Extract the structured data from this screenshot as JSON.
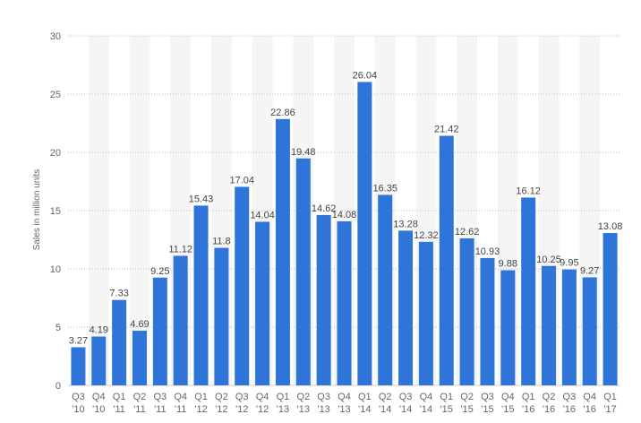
{
  "chart_data": {
    "type": "bar",
    "title": "",
    "xlabel": "",
    "ylabel": "Sales in million units",
    "ylim": [
      0,
      30
    ],
    "yticks": [
      0,
      5,
      10,
      15,
      20,
      25,
      30
    ],
    "grid": true,
    "bar_color": "#2f74d9",
    "band_color": "#f5f5f5",
    "categories": [
      [
        "Q3",
        "'10"
      ],
      [
        "Q4",
        "'10"
      ],
      [
        "Q1",
        "'11"
      ],
      [
        "Q2",
        "'11"
      ],
      [
        "Q3",
        "'11"
      ],
      [
        "Q4",
        "'11"
      ],
      [
        "Q1",
        "'12"
      ],
      [
        "Q2",
        "'12"
      ],
      [
        "Q3",
        "'12"
      ],
      [
        "Q4",
        "'12"
      ],
      [
        "Q1",
        "'13"
      ],
      [
        "Q2",
        "'13"
      ],
      [
        "Q3",
        "'13"
      ],
      [
        "Q4",
        "'13"
      ],
      [
        "Q1",
        "'14"
      ],
      [
        "Q2",
        "'14"
      ],
      [
        "Q3",
        "'14"
      ],
      [
        "Q4",
        "'14"
      ],
      [
        "Q1",
        "'15"
      ],
      [
        "Q2",
        "'15"
      ],
      [
        "Q3",
        "'15"
      ],
      [
        "Q4",
        "'15"
      ],
      [
        "Q1",
        "'16"
      ],
      [
        "Q2",
        "'16"
      ],
      [
        "Q3",
        "'16"
      ],
      [
        "Q4",
        "'16"
      ],
      [
        "Q1",
        "'17"
      ]
    ],
    "values": [
      3.27,
      4.19,
      7.33,
      4.69,
      9.25,
      11.12,
      15.43,
      11.8,
      17.04,
      14.04,
      22.86,
      19.48,
      14.62,
      14.08,
      26.04,
      16.35,
      13.28,
      12.32,
      21.42,
      12.62,
      10.93,
      9.88,
      16.12,
      10.25,
      9.95,
      9.27,
      13.08
    ],
    "value_labels": [
      "3.27",
      "4.19",
      "7.33",
      "4.69",
      "9.25",
      "11.12",
      "15.43",
      "11.8",
      "17.04",
      "14.04",
      "22.86",
      "19.48",
      "14.62",
      "14.08",
      "26.04",
      "16.35",
      "13.28",
      "12.32",
      "21.42",
      "12.62",
      "10.93",
      "9.88",
      "16.12",
      "10.25",
      "9.95",
      "9.27",
      "13.08"
    ]
  }
}
